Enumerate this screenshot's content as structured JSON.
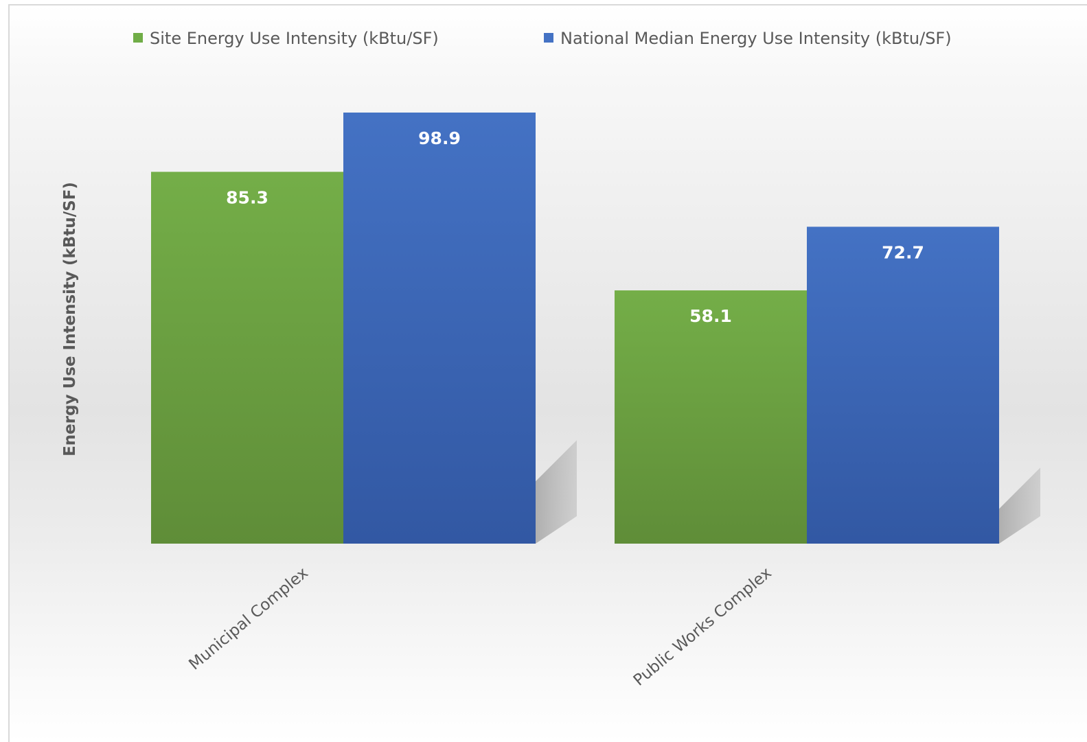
{
  "chart_data": {
    "type": "bar",
    "categories": [
      "Municipal Complex",
      "Public Works Complex"
    ],
    "series": [
      {
        "name": "Site Energy Use Intensity (kBtu/SF)",
        "values": [
          85.3,
          58.1
        ],
        "color": "#70ad47"
      },
      {
        "name": "National Median Energy Use Intensity (kBtu/SF)",
        "values": [
          98.9,
          72.7
        ],
        "color": "#4472c4"
      }
    ],
    "value_labels": [
      [
        "85.3",
        "58.1"
      ],
      [
        "98.9",
        "72.7"
      ]
    ],
    "ylabel": "Energy Use Intensity (kBtu/SF)",
    "ylim": [
      0,
      100
    ],
    "grid": false,
    "legend_position": "top",
    "data_labels": "inside-top"
  }
}
